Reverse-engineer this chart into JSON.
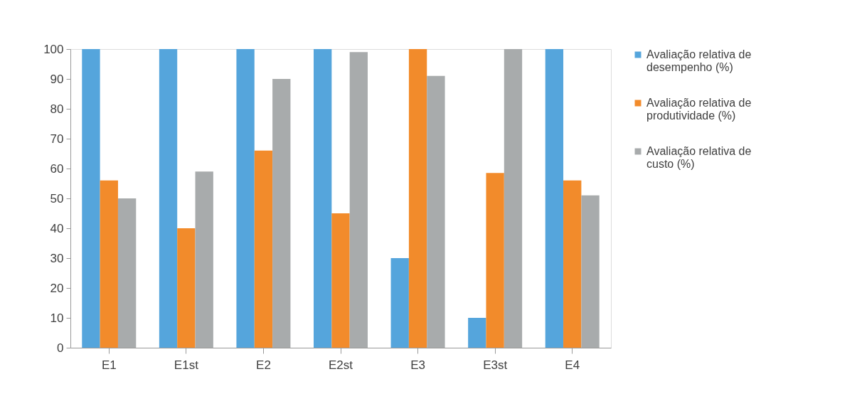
{
  "chart_data": {
    "type": "bar",
    "categories": [
      "E1",
      "E1st",
      "E2",
      "E2st",
      "E3",
      "E3st",
      "E4"
    ],
    "series": [
      {
        "name": "Avaliação relativa de desempenho (%)",
        "color": "#55a5dc",
        "values": [
          100,
          100,
          100,
          100,
          30,
          10,
          100
        ]
      },
      {
        "name": "Avaliação relativa de produtividade (%)",
        "color": "#f28b2b",
        "values": [
          56,
          40,
          66,
          45,
          100,
          58.5,
          56
        ]
      },
      {
        "name": "Avaliação relativa de custo (%)",
        "color": "#a8abac",
        "values": [
          50,
          59,
          90,
          99,
          91,
          100,
          51
        ]
      }
    ],
    "ylim": [
      0,
      100
    ],
    "yticks": [
      0,
      10,
      20,
      30,
      40,
      50,
      60,
      70,
      80,
      90,
      100
    ],
    "grid": false,
    "legend": "right"
  }
}
